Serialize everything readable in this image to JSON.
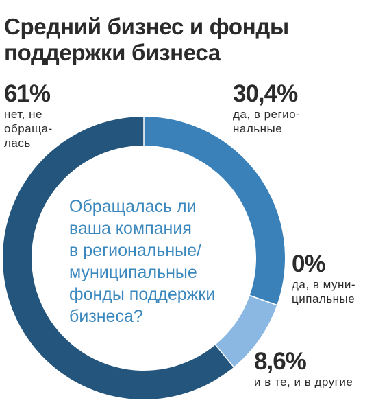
{
  "header": {
    "title_lines": [
      "Средний бизнес и фонды",
      "поддержки бизнеса"
    ]
  },
  "question_lines": [
    "Обращалась ли",
    "ваша компания",
    "в региональные/",
    "муниципальные",
    "фонды поддержки",
    "бизнеса?"
  ],
  "chart_data": {
    "type": "pie",
    "style": "donut",
    "slices": [
      {
        "value": 30.4,
        "label": "30,4%",
        "caption_lines": [
          "да, в регио-",
          "нальные"
        ],
        "color": "#3a81ba"
      },
      {
        "value": 0,
        "label": "0%",
        "caption_lines": [
          "да, в муни-",
          "ципальные"
        ],
        "color": "#3a81ba"
      },
      {
        "value": 8.6,
        "label": "8,6%",
        "caption_lines": [
          "и в те, и в другие"
        ],
        "color": "#8ab8e2"
      },
      {
        "value": 61,
        "label": "61%",
        "caption_lines": [
          "нет, не",
          "обраща-",
          "лась"
        ],
        "color": "#24557c"
      }
    ]
  }
}
